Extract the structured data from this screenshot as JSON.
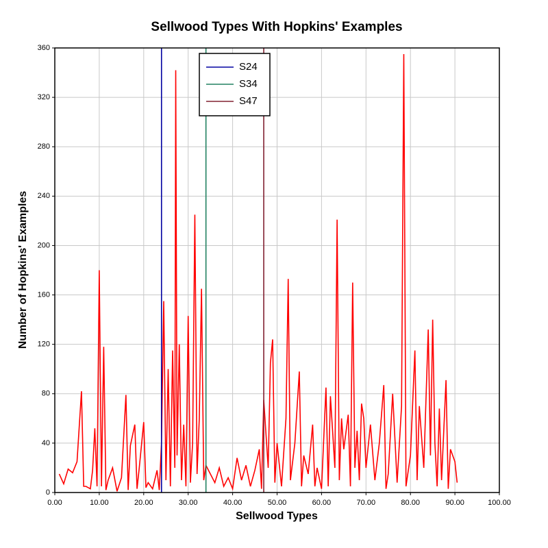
{
  "chart_data": {
    "type": "line",
    "title": "Sellwood Types With Hopkins' Examples",
    "xlabel": "Sellwood Types",
    "ylabel": "Number of Hopkins' Examples",
    "xlim": [
      0,
      100
    ],
    "ylim": [
      0,
      360
    ],
    "xticks": [
      {
        "value": 0,
        "label": "0.00"
      },
      {
        "value": 10,
        "label": "10.00"
      },
      {
        "value": 20,
        "label": "20.00"
      },
      {
        "value": 30,
        "label": "30.00"
      },
      {
        "value": 40,
        "label": "40.00"
      },
      {
        "value": 50,
        "label": "50.00"
      },
      {
        "value": 60,
        "label": "60.00"
      },
      {
        "value": 70,
        "label": "70.00"
      },
      {
        "value": 80,
        "label": "80.00"
      },
      {
        "value": 90,
        "label": "90.00"
      },
      {
        "value": 100,
        "label": "100.00"
      }
    ],
    "yticks": [
      0,
      40,
      80,
      120,
      160,
      200,
      240,
      280,
      320,
      360
    ],
    "grid": true,
    "legend": "top",
    "reference_lines": [
      {
        "name": "S24",
        "color": "#0000a0",
        "x": 24
      },
      {
        "name": "S34",
        "color": "#208060",
        "x": 34
      },
      {
        "name": "S47",
        "color": "#802030",
        "x": 47
      }
    ],
    "series": [
      {
        "color": "#ff0000",
        "x": [
          1,
          2,
          3,
          4,
          5,
          6,
          6.5,
          7,
          8,
          8.5,
          9,
          9.5,
          10,
          10.5,
          11,
          11.5,
          12,
          13,
          14,
          15,
          16,
          16.5,
          17,
          18,
          18.5,
          19,
          20,
          20.5,
          21,
          22,
          23,
          23.5,
          24,
          24.5,
          25,
          25.5,
          26,
          26.5,
          27,
          27.2,
          27.5,
          28,
          28.5,
          29,
          29.5,
          30,
          30.5,
          31,
          31.5,
          32,
          32.5,
          33,
          33.5,
          34,
          35,
          36,
          37,
          38,
          39,
          40,
          41,
          42,
          43,
          44,
          45,
          46,
          46.5,
          47,
          48,
          48.5,
          49,
          49.5,
          50,
          51,
          52,
          52.5,
          53,
          54,
          55,
          55.5,
          56,
          57,
          58,
          58.5,
          59,
          60,
          61,
          61.5,
          62,
          63,
          63.5,
          64,
          64.5,
          65,
          66,
          66.5,
          67,
          67.5,
          68,
          68.5,
          69,
          69.5,
          70,
          71,
          72,
          73,
          74,
          74.5,
          75,
          76,
          77,
          78,
          78.5,
          79,
          80,
          81,
          81.5,
          82,
          83,
          84,
          84.5,
          85,
          85.5,
          86,
          86.5,
          87,
          88,
          88.5,
          89,
          90,
          90.5
        ],
        "values": [
          15,
          7,
          19,
          16,
          25,
          82,
          5,
          5,
          3,
          18,
          52,
          5,
          180,
          5,
          118,
          2,
          10,
          20,
          1,
          12,
          79,
          2,
          38,
          55,
          3,
          20,
          57,
          4,
          8,
          3,
          18,
          2,
          40,
          155,
          10,
          100,
          5,
          115,
          20,
          342,
          30,
          120,
          10,
          55,
          5,
          143,
          8,
          40,
          225,
          15,
          60,
          165,
          10,
          22,
          15,
          8,
          20,
          5,
          12,
          3,
          28,
          10,
          22,
          5,
          18,
          35,
          3,
          75,
          20,
          105,
          124,
          8,
          40,
          5,
          60,
          173,
          10,
          40,
          98,
          5,
          30,
          15,
          55,
          5,
          20,
          3,
          85,
          5,
          78,
          20,
          221,
          10,
          60,
          35,
          63,
          5,
          170,
          20,
          50,
          10,
          72,
          60,
          20,
          55,
          10,
          40,
          87,
          3,
          15,
          80,
          8,
          70,
          355,
          5,
          30,
          115,
          10,
          70,
          20,
          132,
          30,
          140,
          40,
          5,
          68,
          10,
          91,
          3,
          35,
          25,
          8
        ]
      }
    ]
  }
}
